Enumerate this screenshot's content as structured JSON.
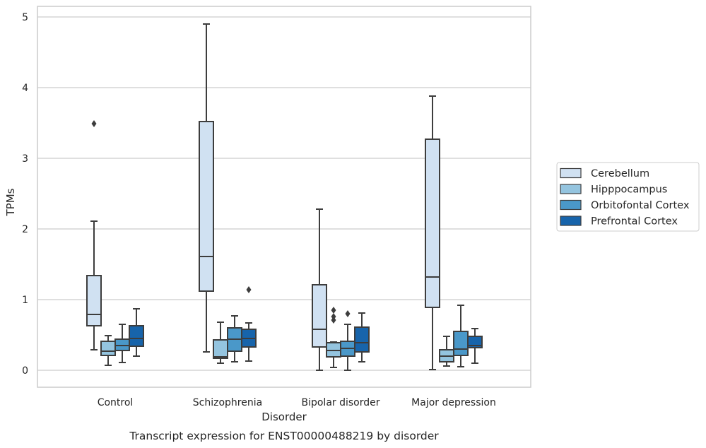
{
  "chart_data": {
    "type": "box",
    "xlabel": "Disorder",
    "ylabel": "TPMs",
    "caption": "Transcript expression for ENST00000488219 by disorder",
    "ylim": [
      -0.23,
      5.15
    ],
    "yticks": [
      0,
      1,
      2,
      3,
      4,
      5
    ],
    "grid": "horizontal",
    "legend_position": "right",
    "categories": [
      "Control",
      "Schizophrenia",
      "Bipolar disorder",
      "Major depression"
    ],
    "series": [
      {
        "name": "Cerebellum",
        "color": "#d0e1f2",
        "boxes": [
          {
            "whislo": 0.29,
            "q1": 0.63,
            "med": 0.79,
            "q3": 1.34,
            "whishi": 2.11,
            "fliers": [
              3.49
            ]
          },
          {
            "whislo": 0.26,
            "q1": 1.12,
            "med": 1.61,
            "q3": 3.52,
            "whishi": 4.9,
            "fliers": []
          },
          {
            "whislo": 0.0,
            "q1": 0.33,
            "med": 0.58,
            "q3": 1.21,
            "whishi": 2.28,
            "fliers": []
          },
          {
            "whislo": 0.01,
            "q1": 0.89,
            "med": 1.32,
            "q3": 3.27,
            "whishi": 3.88,
            "fliers": []
          }
        ]
      },
      {
        "name": "Hipppocampus",
        "color": "#94c4df",
        "boxes": [
          {
            "whislo": 0.07,
            "q1": 0.21,
            "med": 0.27,
            "q3": 0.41,
            "whishi": 0.49,
            "fliers": []
          },
          {
            "whislo": 0.1,
            "q1": 0.17,
            "med": 0.19,
            "q3": 0.43,
            "whishi": 0.68,
            "fliers": []
          },
          {
            "whislo": 0.04,
            "q1": 0.19,
            "med": 0.28,
            "q3": 0.39,
            "whishi": 0.4,
            "fliers": [
              0.71,
              0.76,
              0.85
            ]
          },
          {
            "whislo": 0.06,
            "q1": 0.12,
            "med": 0.2,
            "q3": 0.29,
            "whishi": 0.48,
            "fliers": []
          }
        ]
      },
      {
        "name": "Orbitofontal Cortex",
        "color": "#4a98c9",
        "boxes": [
          {
            "whislo": 0.11,
            "q1": 0.28,
            "med": 0.35,
            "q3": 0.44,
            "whishi": 0.65,
            "fliers": []
          },
          {
            "whislo": 0.12,
            "q1": 0.27,
            "med": 0.44,
            "q3": 0.6,
            "whishi": 0.77,
            "fliers": []
          },
          {
            "whislo": 0.0,
            "q1": 0.2,
            "med": 0.31,
            "q3": 0.41,
            "whishi": 0.65,
            "fliers": [
              0.8
            ]
          },
          {
            "whislo": 0.05,
            "q1": 0.21,
            "med": 0.3,
            "q3": 0.55,
            "whishi": 0.92,
            "fliers": []
          }
        ]
      },
      {
        "name": "Prefrontal Cortex",
        "color": "#1764ab",
        "boxes": [
          {
            "whislo": 0.2,
            "q1": 0.34,
            "med": 0.45,
            "q3": 0.63,
            "whishi": 0.87,
            "fliers": []
          },
          {
            "whislo": 0.13,
            "q1": 0.33,
            "med": 0.45,
            "q3": 0.58,
            "whishi": 0.67,
            "fliers": [
              1.14
            ]
          },
          {
            "whislo": 0.12,
            "q1": 0.26,
            "med": 0.39,
            "q3": 0.61,
            "whishi": 0.81,
            "fliers": []
          },
          {
            "whislo": 0.1,
            "q1": 0.32,
            "med": 0.35,
            "q3": 0.48,
            "whishi": 0.59,
            "fliers": []
          }
        ]
      }
    ]
  }
}
